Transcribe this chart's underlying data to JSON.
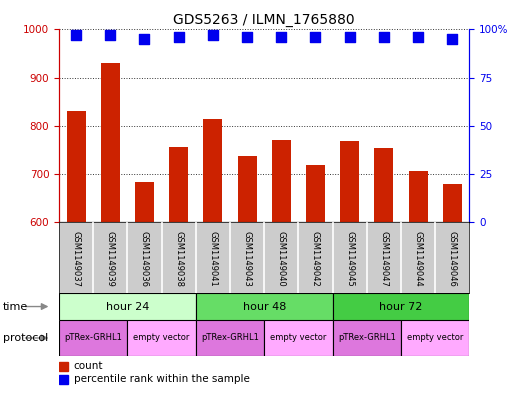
{
  "title": "GDS5263 / ILMN_1765880",
  "samples": [
    "GSM1149037",
    "GSM1149039",
    "GSM1149036",
    "GSM1149038",
    "GSM1149041",
    "GSM1149043",
    "GSM1149040",
    "GSM1149042",
    "GSM1149045",
    "GSM1149047",
    "GSM1149044",
    "GSM1149046"
  ],
  "counts": [
    830,
    930,
    683,
    755,
    815,
    738,
    770,
    719,
    768,
    754,
    706,
    678
  ],
  "percentiles": [
    97,
    97,
    95,
    96,
    97,
    96,
    96,
    96,
    96,
    96,
    96,
    95
  ],
  "ylim_left": [
    600,
    1000
  ],
  "ylim_right": [
    0,
    100
  ],
  "yticks_left": [
    600,
    700,
    800,
    900,
    1000
  ],
  "yticks_right": [
    0,
    25,
    50,
    75,
    100
  ],
  "yticklabels_right": [
    "0",
    "25",
    "50",
    "75",
    "100%"
  ],
  "bar_color": "#cc2200",
  "dot_color": "#0000ee",
  "grid_color": "#000000",
  "bar_width": 0.55,
  "dot_size": 45,
  "left_label_color": "#cc0000",
  "right_label_color": "#0000ee",
  "legend_count_label": "count",
  "legend_pct_label": "percentile rank within the sample",
  "time_label": "time",
  "protocol_label": "protocol",
  "background_color": "#ffffff",
  "title_fontsize": 10,
  "time_groups": [
    {
      "label": "hour 24",
      "start": 0,
      "end": 3,
      "color": "#ccffcc"
    },
    {
      "label": "hour 48",
      "start": 4,
      "end": 7,
      "color": "#66dd66"
    },
    {
      "label": "hour 72",
      "start": 8,
      "end": 11,
      "color": "#44cc44"
    }
  ],
  "protocol_groups": [
    {
      "label": "pTRex-GRHL1",
      "start": 0,
      "end": 1,
      "color": "#dd77dd"
    },
    {
      "label": "empty vector",
      "start": 2,
      "end": 3,
      "color": "#ffaaff"
    },
    {
      "label": "pTRex-GRHL1",
      "start": 4,
      "end": 5,
      "color": "#dd77dd"
    },
    {
      "label": "empty vector",
      "start": 6,
      "end": 7,
      "color": "#ffaaff"
    },
    {
      "label": "pTRex-GRHL1",
      "start": 8,
      "end": 9,
      "color": "#dd77dd"
    },
    {
      "label": "empty vector",
      "start": 10,
      "end": 11,
      "color": "#ffaaff"
    }
  ]
}
